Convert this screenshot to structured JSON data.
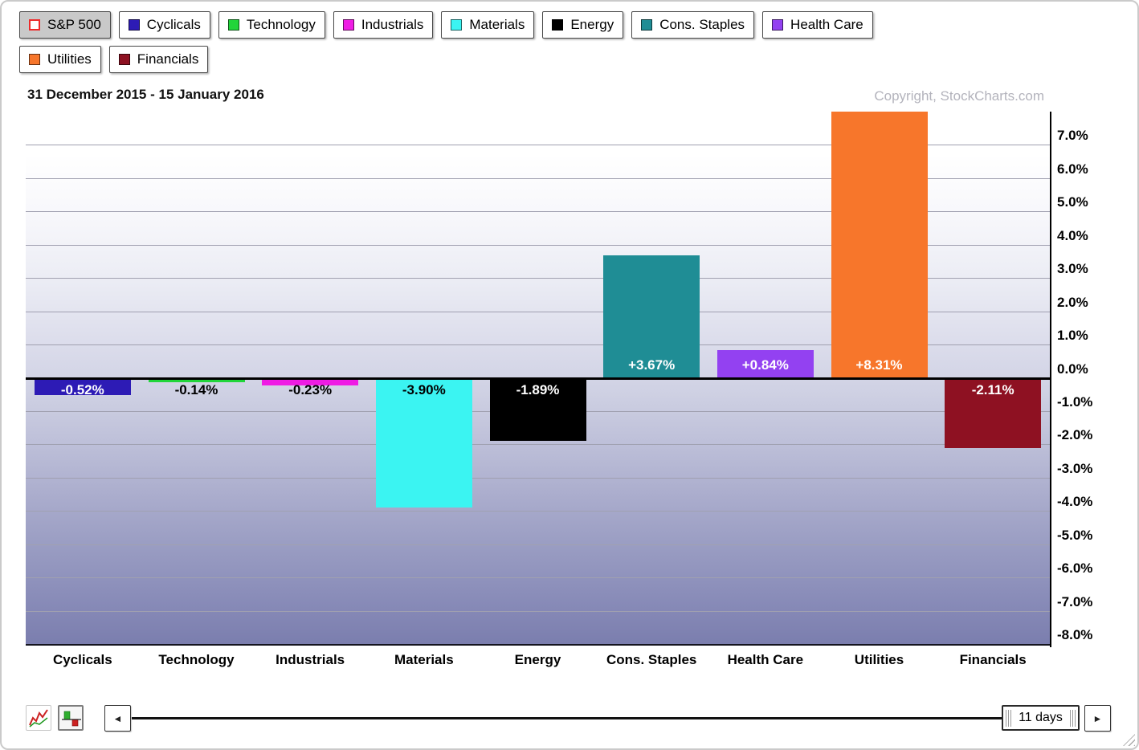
{
  "legend": {
    "items": [
      {
        "label": "S&P 500",
        "swatch": "#ffffff",
        "swatch_border": "#ee2b2b",
        "selected": true
      },
      {
        "label": "Cyclicals",
        "swatch": "#2d1bb5"
      },
      {
        "label": "Technology",
        "swatch": "#21d53a"
      },
      {
        "label": "Industrials",
        "swatch": "#ef1ce4"
      },
      {
        "label": "Materials",
        "swatch": "#3bf4f2"
      },
      {
        "label": "Energy",
        "swatch": "#000000"
      },
      {
        "label": "Cons. Staples",
        "swatch": "#1f8d95"
      },
      {
        "label": "Health Care",
        "swatch": "#9341f1"
      },
      {
        "label": "Utilities",
        "swatch": "#f7762b"
      },
      {
        "label": "Financials",
        "swatch": "#8e1122"
      }
    ]
  },
  "header": {
    "date_range": "31 December 2015 - 15 January 2016",
    "copyright": "Copyright, StockCharts.com"
  },
  "chart_data": {
    "type": "bar",
    "title": "S&P 500 Sector Performance, 31 December 2015 - 15 January 2016",
    "categories": [
      "Cyclicals",
      "Technology",
      "Industrials",
      "Materials",
      "Energy",
      "Cons. Staples",
      "Health Care",
      "Utilities",
      "Financials"
    ],
    "values": [
      -0.52,
      -0.14,
      -0.23,
      -3.9,
      -1.89,
      3.67,
      0.84,
      8.31,
      -2.11
    ],
    "bar_labels": [
      "-0.52%",
      "-0.14%",
      "-0.23%",
      "-3.90%",
      "-1.89%",
      "+3.67%",
      "+0.84%",
      "+8.31%",
      "-2.11%"
    ],
    "colors": [
      "#2d1bb5",
      "#21d53a",
      "#ef1ce4",
      "#3bf4f2",
      "#000000",
      "#1f8d95",
      "#9341f1",
      "#f7762b",
      "#8e1122"
    ],
    "label_colors": [
      "#ffffff",
      "#000000",
      "#000000",
      "#000000",
      "#ffffff",
      "#ffffff",
      "#ffffff",
      "#ffffff",
      "#ffffff"
    ],
    "ylim": [
      -8.0,
      8.0
    ],
    "yticks": [
      7,
      6,
      5,
      4,
      3,
      2,
      1,
      0,
      -1,
      -2,
      -3,
      -4,
      -5,
      -6,
      -7,
      -8
    ],
    "ytick_labels": [
      "7.0%",
      "6.0%",
      "5.0%",
      "4.0%",
      "3.0%",
      "2.0%",
      "1.0%",
      "0.0%",
      "-1.0%",
      "-2.0%",
      "-3.0%",
      "-4.0%",
      "-5.0%",
      "-6.0%",
      "-7.0%",
      "-8.0%"
    ],
    "grid": true,
    "legend_position": "top",
    "y_axis_side": "right"
  },
  "toolbar": {
    "line_chart_icon": "line-chart-icon",
    "histogram_icon": "histogram-bars-icon",
    "left_arrow": "◄",
    "right_arrow": "►",
    "range_label": "11 days"
  }
}
